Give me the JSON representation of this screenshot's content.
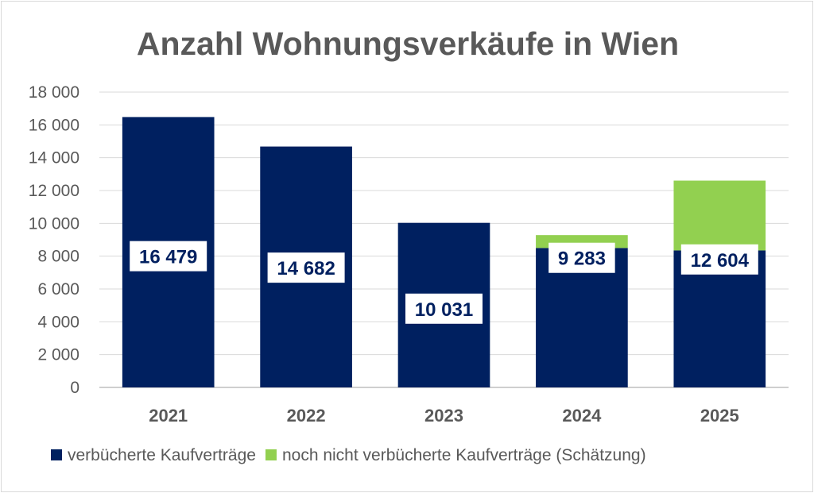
{
  "chart_data": {
    "type": "bar",
    "stacked": true,
    "title": "Anzahl Wohnungsverkäufe in Wien",
    "categories": [
      "2021",
      "2022",
      "2023",
      "2024",
      "2025"
    ],
    "series": [
      {
        "name": "verbücherte Kaufverträge",
        "values": [
          16479,
          14682,
          10031,
          8500,
          8350
        ],
        "color": "#002060"
      },
      {
        "name": "noch nicht verbücherte Kaufverträge (Schätzung)",
        "values": [
          0,
          0,
          0,
          783,
          4254
        ],
        "color": "#92d050"
      }
    ],
    "totals": [
      16479,
      14682,
      10031,
      9283,
      12604
    ],
    "total_labels": [
      "16 479",
      "14 682",
      "10 031",
      "9 283",
      "12 604"
    ],
    "label_values": [
      8000,
      7300,
      4800,
      7900,
      7800
    ],
    "ylim": [
      0,
      18000
    ],
    "yticks": [
      0,
      2000,
      4000,
      6000,
      8000,
      10000,
      12000,
      14000,
      16000,
      18000
    ],
    "ytick_labels": [
      "0",
      "2 000",
      "4 000",
      "6 000",
      "8 000",
      "10 000",
      "12 000",
      "14 000",
      "16 000",
      "18 000"
    ],
    "grid": true,
    "legend_position": "bottom",
    "xlabel": "",
    "ylabel": ""
  }
}
